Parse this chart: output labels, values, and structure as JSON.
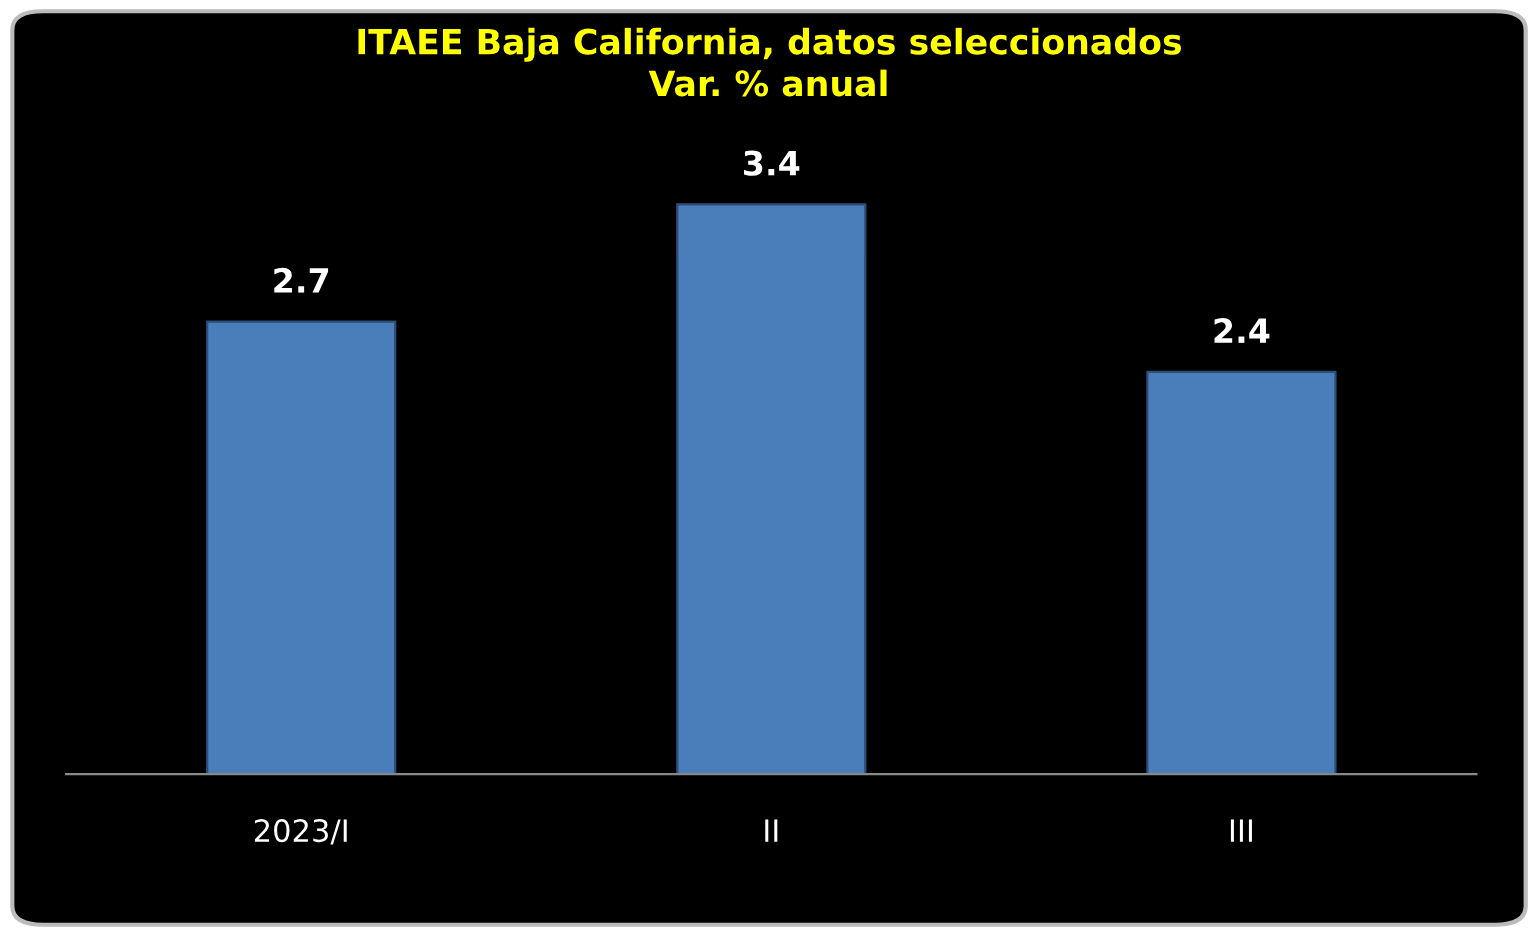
{
  "chart_data": {
    "type": "bar",
    "title": "ITAEE Baja California, datos seleccionados\nVar. % anual",
    "categories": [
      "2023/I",
      "II",
      "III"
    ],
    "values": [
      2.7,
      3.4,
      2.4
    ],
    "color": "#4a7ebb",
    "data_labels": true
  }
}
